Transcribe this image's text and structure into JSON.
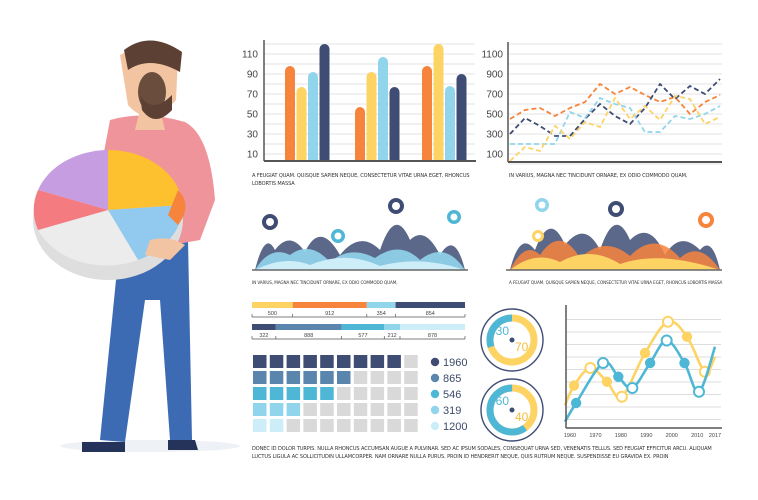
{
  "colors": {
    "orange": "#f7843d",
    "yellow": "#fdd364",
    "light_blue": "#90d5ec",
    "navy": "#3f4d74",
    "blue": "#4fb7d6",
    "grey": "#d9d9d9",
    "steel": "#5a86ad"
  },
  "bar_chart": {
    "type": "bar",
    "y_ticks": [
      "110",
      "90",
      "70",
      "50",
      "30",
      "10"
    ],
    "ylim": [
      0,
      120
    ],
    "groups": [
      [
        98,
        77,
        92,
        120
      ],
      [
        57,
        92,
        107,
        77
      ],
      [
        98,
        120,
        78,
        90
      ]
    ],
    "caption": "A feugiat quam. Quisque sapien neque, consectetur vitae urna eget, rhoncus lobortis massa"
  },
  "line_chart": {
    "type": "line",
    "y_ticks": [
      "1100",
      "900",
      "700",
      "500",
      "300",
      "100"
    ],
    "ylim": [
      0,
      1200
    ],
    "series": [
      {
        "color": "orange",
        "values": [
          450,
          540,
          560,
          480,
          560,
          620,
          800,
          700,
          770,
          690,
          620,
          670,
          500,
          620,
          690
        ]
      },
      {
        "color": "navy",
        "values": [
          300,
          460,
          380,
          280,
          280,
          450,
          600,
          480,
          400,
          560,
          800,
          650,
          780,
          700,
          850
        ]
      },
      {
        "color": "light_blue",
        "values": [
          200,
          200,
          200,
          200,
          520,
          460,
          660,
          600,
          560,
          320,
          320,
          480,
          450,
          500,
          580
        ]
      },
      {
        "color": "yellow",
        "values": [
          30,
          170,
          130,
          380,
          250,
          420,
          370,
          660,
          450,
          580,
          440,
          680,
          650,
          400,
          470
        ]
      }
    ],
    "caption": "In varius, magna nec tincidunt ornare, ex odio commodo quam,"
  },
  "area_left": {
    "caption": "In varius, magna nec tincidunt ornare, ex odio commodo quam,"
  },
  "area_right": {
    "caption": "A feugiat quam. Quisque sapien neque, consectetur vitae urna eget, rhoncus lobortis massa"
  },
  "segment_bars": [
    {
      "values": [
        500,
        912,
        354,
        854
      ],
      "labels": [
        "500",
        "912",
        "354",
        "854"
      ],
      "colors": [
        "yellow",
        "orange",
        "light_blue",
        "navy"
      ]
    },
    {
      "values": [
        322,
        888,
        577,
        212,
        878
      ],
      "labels": [
        "322",
        "888",
        "577",
        "212",
        "878"
      ],
      "colors": [
        "navy",
        "steel",
        "blue",
        "light_blue",
        "#cdeef8"
      ]
    }
  ],
  "waffle": {
    "filled_per_row": [
      9,
      6,
      5,
      3,
      2
    ],
    "legend": [
      {
        "label": "1960",
        "color": "navy"
      },
      {
        "label": "865",
        "color": "steel"
      },
      {
        "label": "546",
        "color": "blue"
      },
      {
        "label": "319",
        "color": "light_blue"
      },
      {
        "label": "1200",
        "color": "#cdeef8"
      }
    ]
  },
  "donuts": [
    {
      "blue": 30,
      "yellow": 70,
      "blue_label": "30",
      "yellow_label": "70"
    },
    {
      "blue": 60,
      "yellow": 40,
      "blue_label": "60",
      "yellow_label": "40"
    }
  ],
  "curve_chart": {
    "type": "line",
    "x_ticks": [
      "1960",
      "1970",
      "1980",
      "1990",
      "2000",
      "2010",
      "2017"
    ],
    "series": [
      {
        "color": "yellow",
        "points": [
          [
            1958,
            1.8
          ],
          [
            1961.6,
            3.4
          ],
          [
            1968,
            4.8
          ],
          [
            1974.5,
            3.7
          ],
          [
            1980.4,
            2.5
          ],
          [
            1989.5,
            6.0
          ],
          [
            1998.5,
            8.5
          ],
          [
            2006,
            7.3
          ],
          [
            2013,
            4.5
          ],
          [
            2017,
            5.7
          ]
        ]
      },
      {
        "color": "blue",
        "points": [
          [
            1958,
            0.5
          ],
          [
            1962.4,
            2.0
          ],
          [
            1973,
            5.2
          ],
          [
            1979,
            4.1
          ],
          [
            1984.5,
            3.2
          ],
          [
            1991.5,
            5.2
          ],
          [
            1998,
            7.0
          ],
          [
            2005,
            5.2
          ],
          [
            2010.7,
            2.9
          ],
          [
            2017,
            6.5
          ]
        ]
      }
    ]
  },
  "footer_text": "Donec id dolor turpis. Nulla rhoncus accumsan augue a pulvinar. Sed ac ipsum sodales, consequat urna sed, venenatis tellus. Sed feugiat efficitur arcu. Aliquam luctus ligula ac sollicitudin ullamcorper. Nam ornare nulla purus. Proin id hendrerit neque, quis rutrum neque. Suspendisse eu gravida ex. Proin"
}
